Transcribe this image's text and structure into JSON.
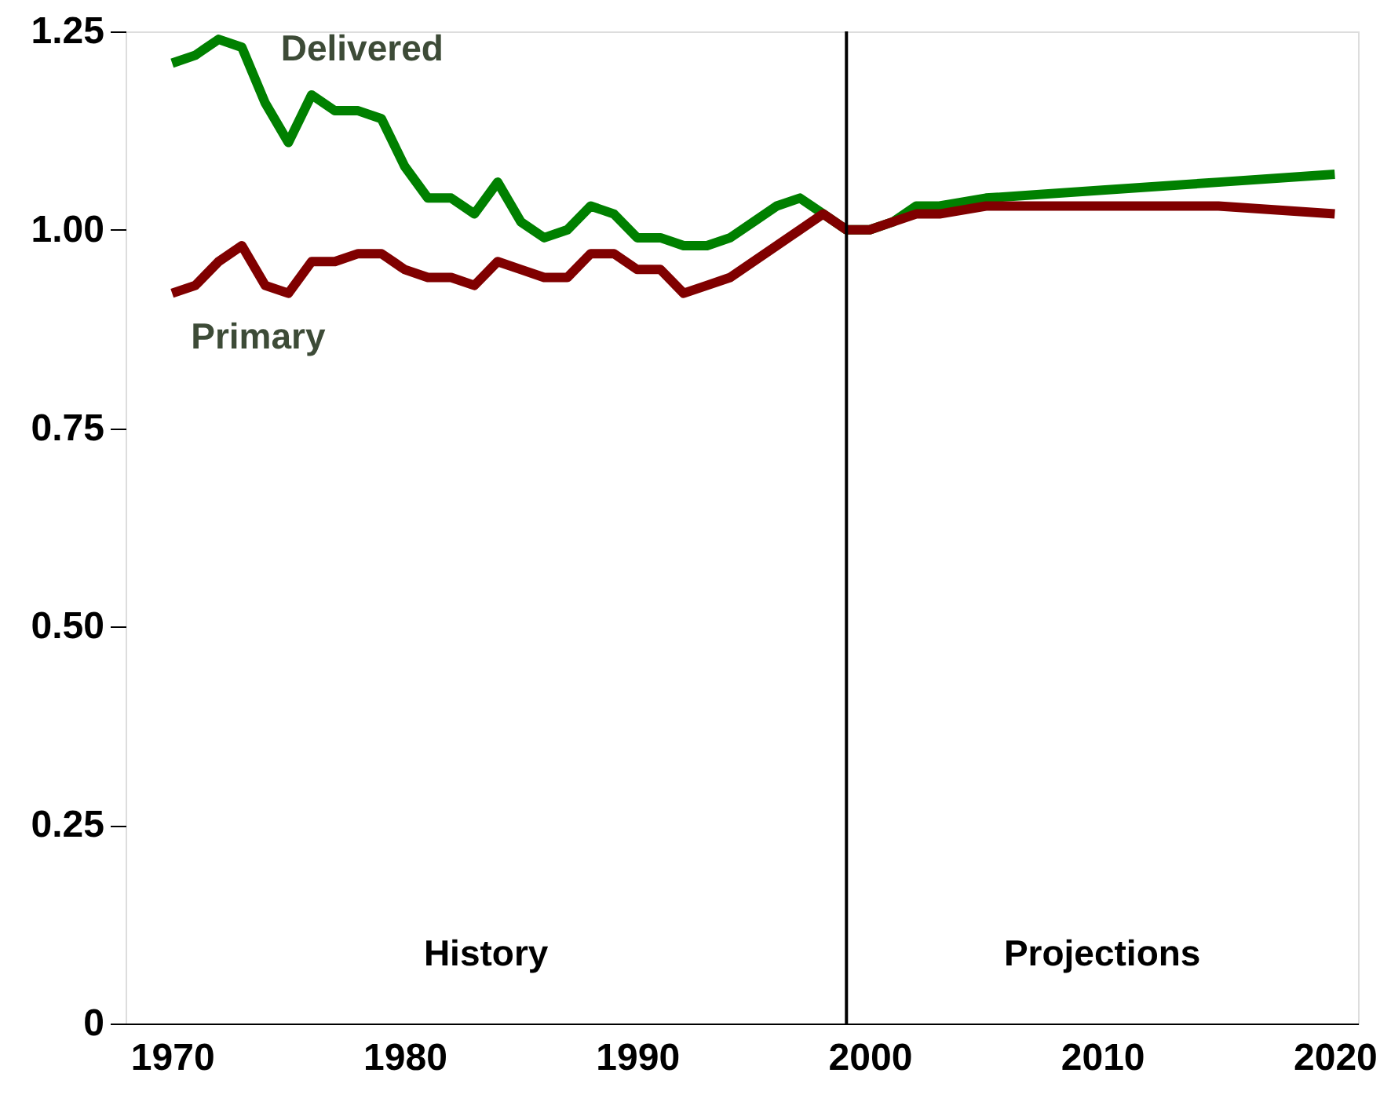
{
  "chart_data": {
    "type": "line",
    "series": [
      {
        "name": "Delivered",
        "color": "#008000",
        "x": [
          1970,
          1971,
          1972,
          1973,
          1974,
          1975,
          1976,
          1977,
          1978,
          1979,
          1980,
          1981,
          1982,
          1983,
          1984,
          1985,
          1986,
          1987,
          1988,
          1989,
          1990,
          1991,
          1992,
          1993,
          1994,
          1995,
          1996,
          1997,
          1998,
          1999,
          2000,
          2001,
          2002,
          2003,
          2005,
          2010,
          2015,
          2020
        ],
        "values": [
          1.21,
          1.22,
          1.24,
          1.23,
          1.16,
          1.11,
          1.17,
          1.15,
          1.15,
          1.14,
          1.08,
          1.04,
          1.04,
          1.02,
          1.06,
          1.01,
          0.99,
          1.0,
          1.03,
          1.02,
          0.99,
          0.99,
          0.98,
          0.98,
          0.99,
          1.01,
          1.03,
          1.04,
          1.02,
          1.0,
          1.0,
          1.01,
          1.03,
          1.03,
          1.04,
          1.05,
          1.06,
          1.07
        ]
      },
      {
        "name": "Primary",
        "color": "#800000",
        "x": [
          1970,
          1971,
          1972,
          1973,
          1974,
          1975,
          1976,
          1977,
          1978,
          1979,
          1980,
          1981,
          1982,
          1983,
          1984,
          1985,
          1986,
          1987,
          1988,
          1989,
          1990,
          1991,
          1992,
          1993,
          1994,
          1995,
          1996,
          1997,
          1998,
          1999,
          2000,
          2001,
          2002,
          2003,
          2005,
          2010,
          2015,
          2020
        ],
        "values": [
          0.92,
          0.93,
          0.96,
          0.98,
          0.93,
          0.92,
          0.96,
          0.96,
          0.97,
          0.97,
          0.95,
          0.94,
          0.94,
          0.93,
          0.96,
          0.95,
          0.94,
          0.94,
          0.97,
          0.97,
          0.95,
          0.95,
          0.92,
          0.93,
          0.94,
          0.96,
          0.98,
          1.0,
          1.02,
          1.0,
          1.0,
          1.01,
          1.02,
          1.02,
          1.03,
          1.03,
          1.03,
          1.02
        ]
      }
    ],
    "xlim": [
      1968,
      2021
    ],
    "xticks": [
      1970,
      1980,
      1990,
      2000,
      2010,
      2020
    ],
    "ylim": [
      0,
      1.25
    ],
    "yticks": [
      {
        "value": 0,
        "label": "0"
      },
      0.25,
      {
        "value": 0.5,
        "label": "0.50"
      },
      0.75,
      {
        "value": 1,
        "label": "1.00"
      },
      1.25
    ],
    "ref_lines": [
      {
        "axis": "x",
        "value": 1999,
        "color": "#000000"
      }
    ],
    "annotations": [
      "History",
      "Projections"
    ],
    "grid": false,
    "legend": false
  }
}
